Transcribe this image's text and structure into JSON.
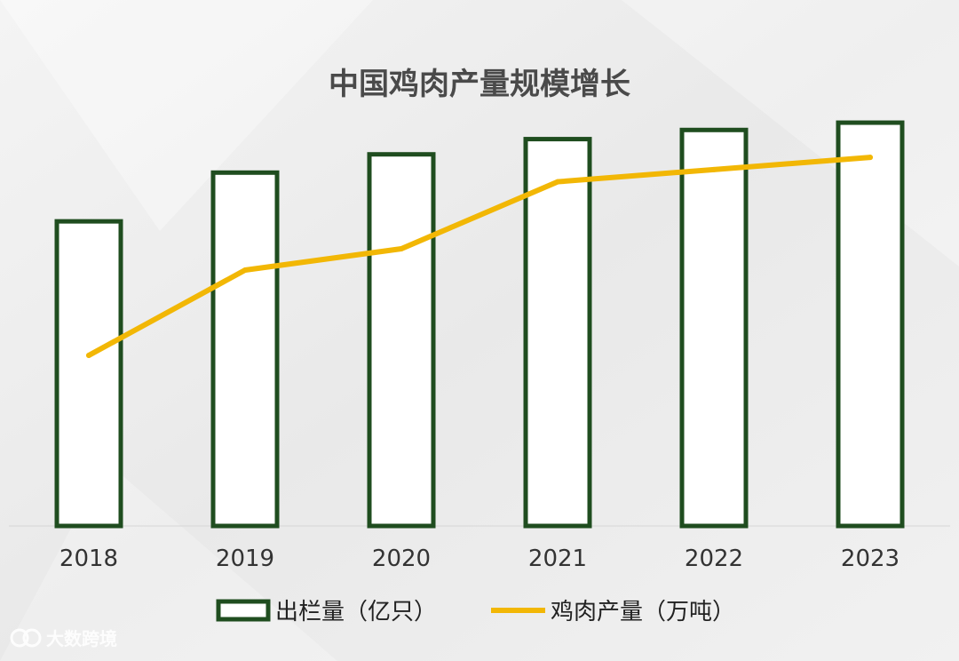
{
  "colors": {
    "bar_stroke": "#1f4d1f",
    "bar_fill": "#ffffff",
    "line": "#f2b705",
    "background": "#ececec",
    "text": "#333333"
  },
  "watermark": {
    "text": "大数跨境",
    "icon": "logo-icon"
  },
  "chart_data": {
    "type": "bar",
    "title": "中国鸡肉产量规模增长",
    "categories": [
      "2018",
      "2019",
      "2020",
      "2021",
      "2022",
      "2023"
    ],
    "series": [
      {
        "name": "出栏量（亿只）",
        "type": "bar",
        "values": [
          50,
          58,
          61,
          63.5,
          65,
          66.2
        ]
      },
      {
        "name": "鸡肉产量（万吨）",
        "type": "line",
        "values": [
          28,
          42,
          45.5,
          56.5,
          58.5,
          60.5
        ]
      }
    ],
    "ylim": [
      0,
      70
    ],
    "y_ticks_visible": false,
    "grid": false,
    "legend_position": "bottom"
  }
}
